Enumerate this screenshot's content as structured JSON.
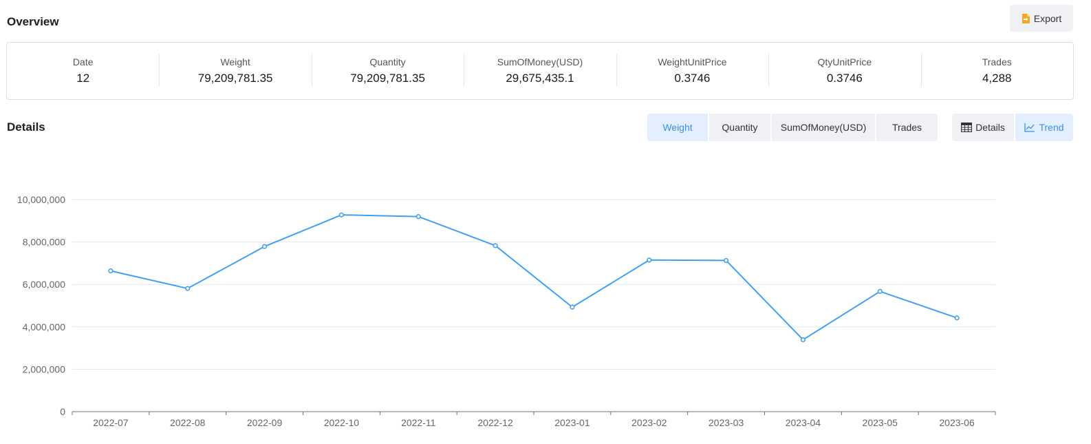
{
  "overview": {
    "title": "Overview",
    "export_label": "Export",
    "export_icon": "document-export-icon",
    "summary": [
      {
        "label": "Date",
        "value": "12"
      },
      {
        "label": "Weight",
        "value": "79,209,781.35"
      },
      {
        "label": "Quantity",
        "value": "79,209,781.35"
      },
      {
        "label": "SumOfMoney(USD)",
        "value": "29,675,435.1"
      },
      {
        "label": "WeightUnitPrice",
        "value": "0.3746"
      },
      {
        "label": "QtyUnitPrice",
        "value": "0.3746"
      },
      {
        "label": "Trades",
        "value": "4,288"
      }
    ]
  },
  "details": {
    "title": "Details",
    "metric_tabs": [
      {
        "label": "Weight",
        "active": true
      },
      {
        "label": "Quantity",
        "active": false
      },
      {
        "label": "SumOfMoney(USD)",
        "active": false
      },
      {
        "label": "Trades",
        "active": false
      }
    ],
    "view_tabs": [
      {
        "label": "Details",
        "icon": "table-icon",
        "active": false
      },
      {
        "label": "Trend",
        "icon": "line-chart-icon",
        "active": true
      }
    ]
  },
  "colors": {
    "accent": "#3a8ee6",
    "line": "#3fa0f4",
    "active_tab_bg": "#e3efff"
  },
  "chart_data": {
    "type": "line",
    "categories": [
      "2022-07",
      "2022-08",
      "2022-09",
      "2022-10",
      "2022-11",
      "2022-12",
      "2023-01",
      "2023-02",
      "2023-03",
      "2023-04",
      "2023-05",
      "2023-06"
    ],
    "series": [
      {
        "values": [
          6640000,
          5810000,
          7790000,
          9280000,
          9200000,
          7830000,
          4930000,
          7150000,
          7130000,
          3390000,
          5670000,
          4420000
        ]
      }
    ],
    "y_ticks": [
      "0",
      "2,000,000",
      "4,000,000",
      "6,000,000",
      "8,000,000",
      "10,000,000"
    ],
    "ylim": [
      0,
      10000000
    ],
    "grid": true,
    "title": "",
    "xlabel": "",
    "ylabel": ""
  }
}
